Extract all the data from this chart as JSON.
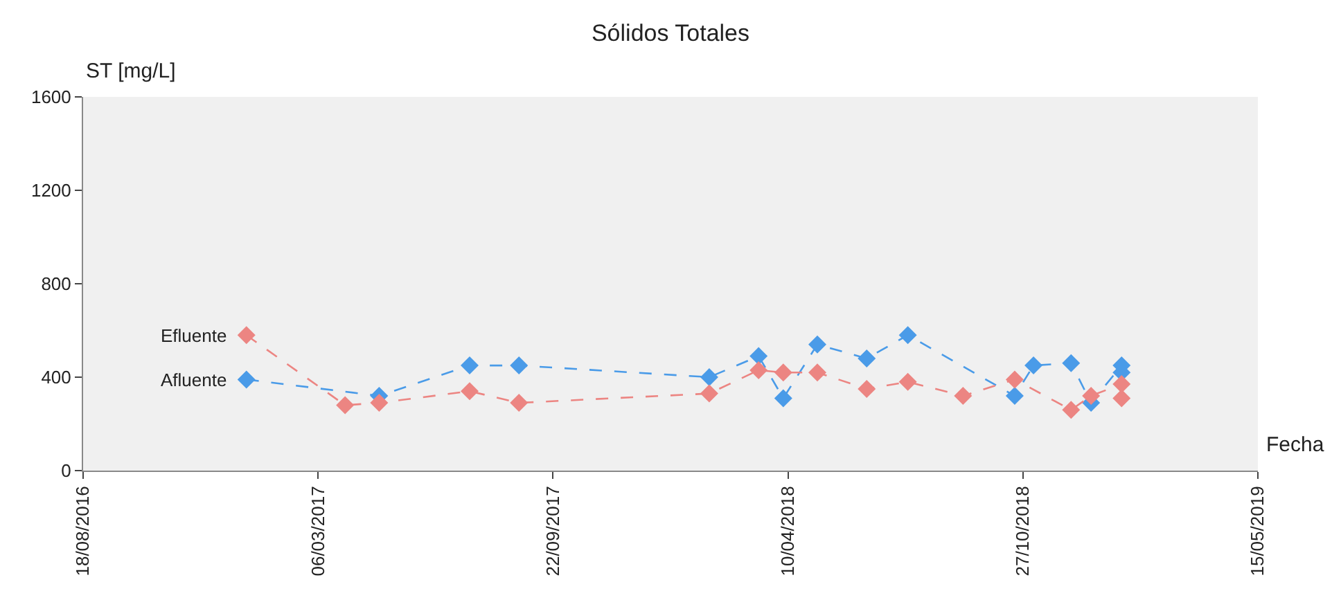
{
  "chart_data": {
    "type": "line",
    "title": "Sólidos Totales",
    "xlabel": "Fecha",
    "ylabel": "ST [mg/L]",
    "series": [
      {
        "name": "Afluente",
        "color": "#4a9be8",
        "x": [
          "2017-01-04",
          "2017-03-29",
          "2017-04-27",
          "2017-07-13",
          "2017-08-24",
          "2018-02-02",
          "2018-03-16",
          "2018-04-06",
          "2018-05-05",
          "2018-06-16",
          "2018-07-21",
          "2018-09-06",
          "2018-10-20",
          "2018-11-05",
          "2018-12-07",
          "2018-12-24",
          "2019-01-19",
          "2019-01-19"
        ],
        "values": [
          390,
          null,
          320,
          450,
          450,
          400,
          490,
          310,
          540,
          480,
          580,
          null,
          320,
          450,
          460,
          290,
          450,
          420
        ]
      },
      {
        "name": "Efluente",
        "color": "#ec8582",
        "x": [
          "2017-01-04",
          "2017-03-29",
          "2017-04-27",
          "2017-07-13",
          "2017-08-24",
          "2018-02-02",
          "2018-03-16",
          "2018-04-06",
          "2018-05-05",
          "2018-06-16",
          "2018-07-21",
          "2018-09-06",
          "2018-10-20",
          "2018-12-07",
          "2018-12-24",
          "2019-01-19",
          "2019-01-19"
        ],
        "values": [
          580,
          280,
          290,
          340,
          290,
          330,
          430,
          420,
          420,
          350,
          380,
          320,
          390,
          260,
          320,
          370,
          310
        ]
      }
    ],
    "xlim": [
      "2016-08-18",
      "2019-05-15"
    ],
    "xticks": [
      {
        "value": "2016-08-18",
        "label": "18/08/2016"
      },
      {
        "value": "2017-03-06",
        "label": "06/03/2017"
      },
      {
        "value": "2017-09-22",
        "label": "22/09/2017"
      },
      {
        "value": "2018-04-10",
        "label": "10/04/2018"
      },
      {
        "value": "2018-10-27",
        "label": "27/10/2018"
      },
      {
        "value": "2019-05-15",
        "label": "15/05/2019"
      }
    ],
    "ylim": [
      0,
      1600
    ],
    "yticks": [
      0,
      400,
      800,
      1200,
      1600
    ],
    "grid": false,
    "legend": false,
    "marker": "diamond",
    "line_style": "dashed"
  }
}
